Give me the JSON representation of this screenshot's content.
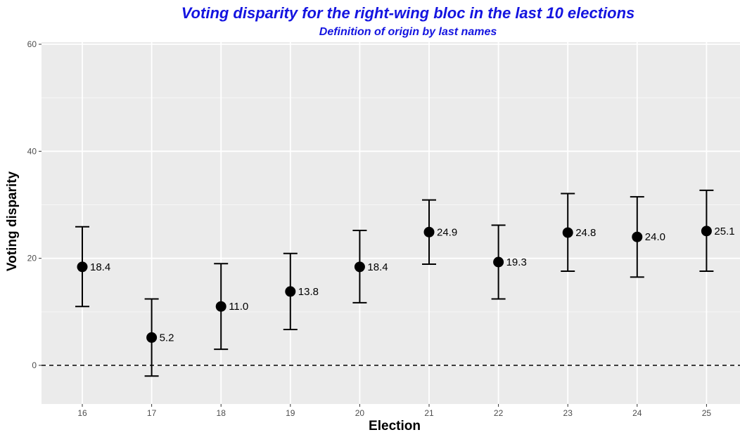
{
  "chart_data": {
    "type": "scatter",
    "title": "Voting disparity for the right-wing bloc in the last 10 elections",
    "subtitle": "Definition of origin by last names",
    "xlabel": "Election",
    "ylabel": "Voting disparity",
    "ylim": [
      -7,
      60
    ],
    "yticks": [
      0,
      20,
      40,
      60
    ],
    "categories": [
      "16",
      "17",
      "18",
      "19",
      "20",
      "21",
      "22",
      "23",
      "24",
      "25"
    ],
    "values": [
      18.4,
      5.2,
      11.0,
      13.8,
      18.4,
      24.9,
      19.3,
      24.8,
      24.0,
      25.1
    ],
    "value_labels": [
      "18.4",
      "5.2",
      "11.0",
      "13.8",
      "18.4",
      "24.9",
      "19.3",
      "24.8",
      "24.0",
      "25.1"
    ],
    "ci_lower": [
      11.0,
      -2.0,
      3.0,
      6.7,
      11.7,
      18.9,
      12.4,
      17.6,
      16.5,
      17.6
    ],
    "ci_upper": [
      25.9,
      12.4,
      19.0,
      20.9,
      25.2,
      30.9,
      26.2,
      32.1,
      31.5,
      32.7
    ],
    "reference_line": 0,
    "grid": true,
    "colors": {
      "title": "#1414e0",
      "panel": "#ebebeb",
      "grid": "#ffffff",
      "points": "#000000"
    }
  }
}
